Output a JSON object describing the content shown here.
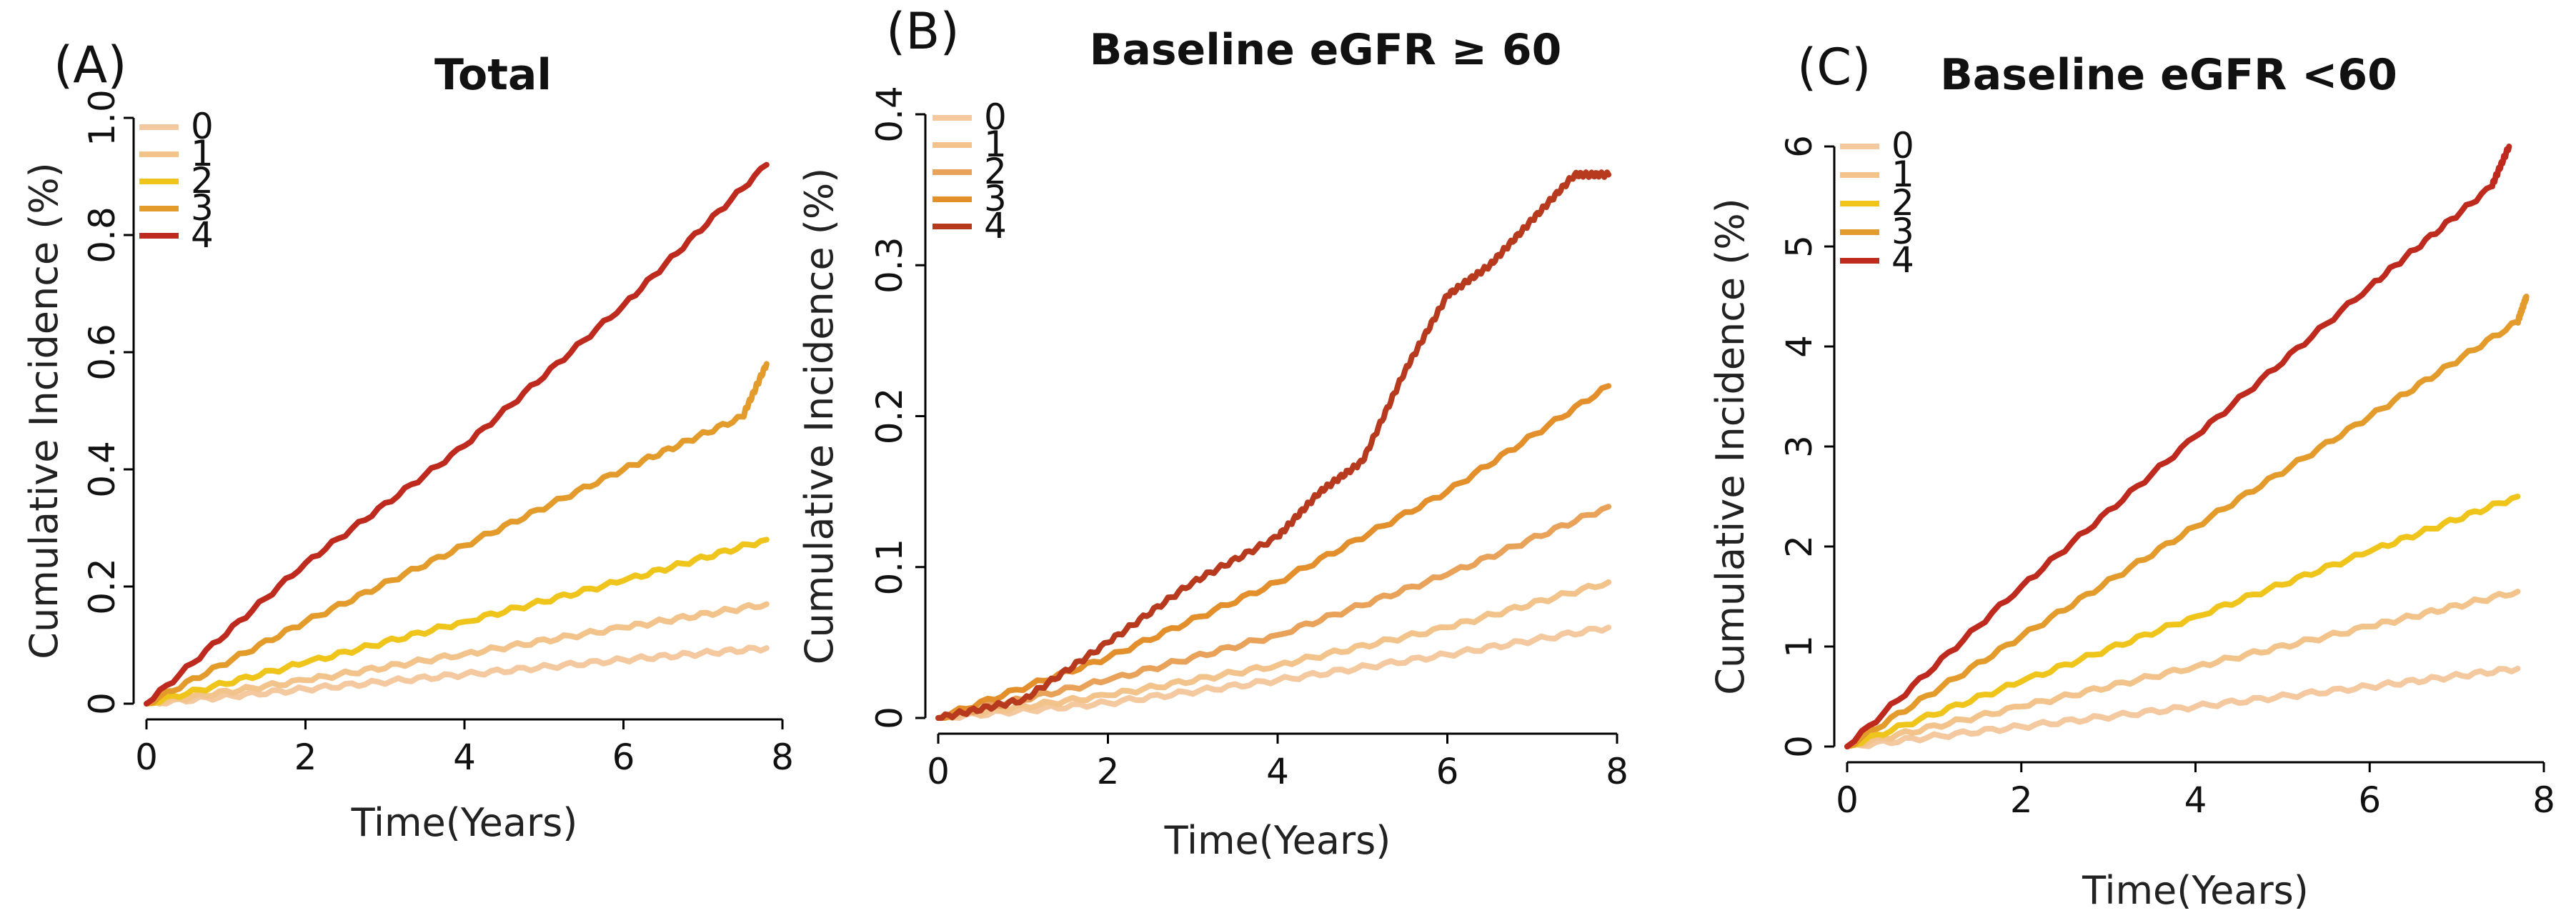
{
  "chart_data": [
    {
      "type": "line",
      "panel_label": "(A)",
      "title": "Total",
      "xlabel": "Time(Years)",
      "ylabel": "Cumulative Incidence (%)",
      "xlim": [
        0,
        8
      ],
      "ylim": [
        0,
        1.0
      ],
      "xticks": [
        "0",
        "2",
        "4",
        "6",
        "8"
      ],
      "yticks": [
        "0",
        "0.2",
        "0.4",
        "0.6",
        "0.8",
        "1.0"
      ],
      "legend": [
        "0",
        "1",
        "2",
        "3",
        "4"
      ],
      "series": [
        {
          "name": "0",
          "color": "#f4c9a0",
          "x": [
            0,
            2,
            4,
            6,
            7.8
          ],
          "y": [
            0,
            0.025,
            0.05,
            0.075,
            0.095
          ]
        },
        {
          "name": "1",
          "color": "#f2c38a",
          "x": [
            0,
            2,
            4,
            6,
            7.8
          ],
          "y": [
            0,
            0.04,
            0.085,
            0.13,
            0.17
          ]
        },
        {
          "name": "2",
          "color": "#efc51b",
          "x": [
            0,
            2,
            4,
            6,
            7.8
          ],
          "y": [
            0,
            0.07,
            0.14,
            0.21,
            0.28
          ]
        },
        {
          "name": "3",
          "color": "#e39b2c",
          "x": [
            0,
            2,
            4,
            6,
            7.5,
            7.8
          ],
          "y": [
            0,
            0.14,
            0.27,
            0.4,
            0.49,
            0.58
          ]
        },
        {
          "name": "4",
          "color": "#bf2a1f",
          "x": [
            0,
            2,
            4,
            6,
            7.8
          ],
          "y": [
            0,
            0.24,
            0.44,
            0.68,
            0.92
          ]
        }
      ]
    },
    {
      "type": "line",
      "panel_label": "(B)",
      "title": "Baseline eGFR ≥ 60",
      "xlabel": "Time(Years)",
      "ylabel": "Cumulative Incidence (%)",
      "xlim": [
        0,
        8
      ],
      "ylim": [
        0,
        0.4
      ],
      "xticks": [
        "0",
        "2",
        "4",
        "6",
        "8"
      ],
      "yticks": [
        "0",
        "0.1",
        "0.2",
        "0.3",
        "0.4"
      ],
      "legend": [
        "0",
        "1",
        "2",
        "3",
        "4"
      ],
      "series": [
        {
          "name": "0",
          "color": "#f4c9a0",
          "x": [
            0,
            2,
            4,
            6,
            7.9
          ],
          "y": [
            0,
            0.01,
            0.025,
            0.042,
            0.06
          ]
        },
        {
          "name": "1",
          "color": "#f2c38a",
          "x": [
            0,
            2,
            4,
            6,
            7.9
          ],
          "y": [
            0,
            0.015,
            0.035,
            0.06,
            0.09
          ]
        },
        {
          "name": "2",
          "color": "#e8a25a",
          "x": [
            0,
            2,
            4,
            6,
            7.9
          ],
          "y": [
            0,
            0.025,
            0.055,
            0.095,
            0.14
          ]
        },
        {
          "name": "3",
          "color": "#e3902c",
          "x": [
            0,
            2,
            4,
            6,
            7.9
          ],
          "y": [
            0,
            0.04,
            0.09,
            0.15,
            0.22
          ]
        },
        {
          "name": "4",
          "color": "#b73a1f",
          "x": [
            0,
            1,
            2,
            3,
            4,
            4.5,
            5,
            5.5,
            6,
            6.5,
            7,
            7.5,
            7.9
          ],
          "y": [
            0,
            0.012,
            0.05,
            0.09,
            0.12,
            0.15,
            0.17,
            0.23,
            0.28,
            0.3,
            0.33,
            0.36,
            0.36
          ]
        }
      ]
    },
    {
      "type": "line",
      "panel_label": "(C)",
      "title": "Baseline eGFR <60",
      "xlabel": "Time(Years)",
      "ylabel": "Cumulative Incidence (%)",
      "xlim": [
        0,
        8
      ],
      "ylim": [
        0,
        6
      ],
      "xticks": [
        "0",
        "2",
        "4",
        "6",
        "8"
      ],
      "yticks": [
        "0",
        "1",
        "2",
        "3",
        "4",
        "5",
        "6"
      ],
      "legend": [
        "0",
        "1",
        "2",
        "3",
        "4"
      ],
      "series": [
        {
          "name": "0",
          "color": "#f4c9a0",
          "x": [
            0,
            2,
            4,
            6,
            7.7
          ],
          "y": [
            0,
            0.2,
            0.4,
            0.6,
            0.78
          ]
        },
        {
          "name": "1",
          "color": "#f2c38a",
          "x": [
            0,
            2,
            4,
            6,
            7.7
          ],
          "y": [
            0,
            0.4,
            0.8,
            1.2,
            1.55
          ]
        },
        {
          "name": "2",
          "color": "#efc51b",
          "x": [
            0,
            2,
            4,
            6,
            7.7
          ],
          "y": [
            0,
            0.65,
            1.3,
            1.95,
            2.5
          ]
        },
        {
          "name": "3",
          "color": "#e39b2c",
          "x": [
            0,
            2,
            4,
            6,
            7.7,
            7.8
          ],
          "y": [
            0,
            1.1,
            2.2,
            3.3,
            4.25,
            4.5
          ]
        },
        {
          "name": "4",
          "color": "#bf2a1f",
          "x": [
            0,
            2,
            4,
            6,
            7.4,
            7.6
          ],
          "y": [
            0,
            1.6,
            3.1,
            4.6,
            5.6,
            6.0
          ]
        }
      ]
    }
  ]
}
